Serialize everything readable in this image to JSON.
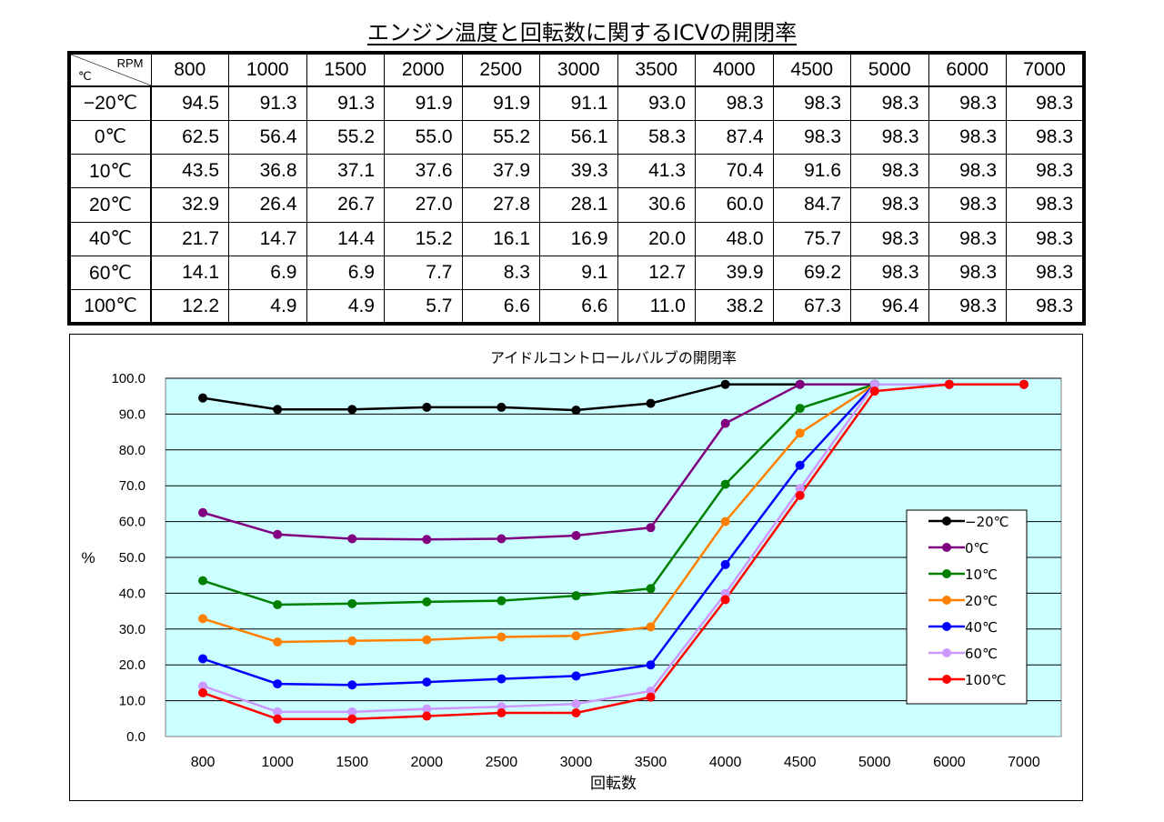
{
  "page_title": "エンジン温度と回転数に関するICVの開閉率",
  "table": {
    "corner_rpm": "RPM",
    "corner_deg": "℃",
    "columns": [
      "800",
      "1000",
      "1500",
      "2000",
      "2500",
      "3000",
      "3500",
      "4000",
      "4500",
      "5000",
      "6000",
      "7000"
    ],
    "rows": [
      {
        "label": "−20℃",
        "cells": [
          "94.5",
          "91.3",
          "91.3",
          "91.9",
          "91.9",
          "91.1",
          "93.0",
          "98.3",
          "98.3",
          "98.3",
          "98.3",
          "98.3"
        ]
      },
      {
        "label": "0℃",
        "cells": [
          "62.5",
          "56.4",
          "55.2",
          "55.0",
          "55.2",
          "56.1",
          "58.3",
          "87.4",
          "98.3",
          "98.3",
          "98.3",
          "98.3"
        ]
      },
      {
        "label": "10℃",
        "cells": [
          "43.5",
          "36.8",
          "37.1",
          "37.6",
          "37.9",
          "39.3",
          "41.3",
          "70.4",
          "91.6",
          "98.3",
          "98.3",
          "98.3"
        ]
      },
      {
        "label": "20℃",
        "cells": [
          "32.9",
          "26.4",
          "26.7",
          "27.0",
          "27.8",
          "28.1",
          "30.6",
          "60.0",
          "84.7",
          "98.3",
          "98.3",
          "98.3"
        ]
      },
      {
        "label": "40℃",
        "cells": [
          "21.7",
          "14.7",
          "14.4",
          "15.2",
          "16.1",
          "16.9",
          "20.0",
          "48.0",
          "75.7",
          "98.3",
          "98.3",
          "98.3"
        ]
      },
      {
        "label": "60℃",
        "cells": [
          "14.1",
          "6.9",
          "6.9",
          "7.7",
          "8.3",
          "9.1",
          "12.7",
          "39.9",
          "69.2",
          "98.3",
          "98.3",
          "98.3"
        ]
      },
      {
        "label": "100℃",
        "cells": [
          "12.2",
          "4.9",
          "4.9",
          "5.7",
          "6.6",
          "6.6",
          "11.0",
          "38.2",
          "67.3",
          "96.4",
          "98.3",
          "98.3"
        ]
      }
    ]
  },
  "chart_data": {
    "type": "line",
    "title": "アイドルコントロールバルブの開閉率",
    "xlabel": "回転数",
    "ylabel": "%",
    "categories": [
      "800",
      "1000",
      "1500",
      "2000",
      "2500",
      "3000",
      "3500",
      "4000",
      "4500",
      "5000",
      "6000",
      "7000"
    ],
    "ylim": [
      0,
      100
    ],
    "yticks": [
      "0.0",
      "10.0",
      "20.0",
      "30.0",
      "40.0",
      "50.0",
      "60.0",
      "70.0",
      "80.0",
      "90.0",
      "100.0"
    ],
    "grid": true,
    "plot_background": "#ccffff",
    "legend_position": "right",
    "series": [
      {
        "name": "−20℃",
        "color": "#000000",
        "values": [
          94.5,
          91.3,
          91.3,
          91.9,
          91.9,
          91.1,
          93.0,
          98.3,
          98.3,
          98.3,
          98.3,
          98.3
        ]
      },
      {
        "name": "0℃",
        "color": "#800080",
        "values": [
          62.5,
          56.4,
          55.2,
          55.0,
          55.2,
          56.1,
          58.3,
          87.4,
          98.3,
          98.3,
          98.3,
          98.3
        ]
      },
      {
        "name": "10℃",
        "color": "#008000",
        "values": [
          43.5,
          36.8,
          37.1,
          37.6,
          37.9,
          39.3,
          41.3,
          70.4,
          91.6,
          98.3,
          98.3,
          98.3
        ]
      },
      {
        "name": "20℃",
        "color": "#ff8000",
        "values": [
          32.9,
          26.4,
          26.7,
          27.0,
          27.8,
          28.1,
          30.6,
          60.0,
          84.7,
          98.3,
          98.3,
          98.3
        ]
      },
      {
        "name": "40℃",
        "color": "#0000ff",
        "values": [
          21.7,
          14.7,
          14.4,
          15.2,
          16.1,
          16.9,
          20.0,
          48.0,
          75.7,
          98.3,
          98.3,
          98.3
        ]
      },
      {
        "name": "60℃",
        "color": "#cc99ff",
        "values": [
          14.1,
          6.9,
          6.9,
          7.7,
          8.3,
          9.1,
          12.7,
          39.9,
          69.2,
          98.3,
          98.3,
          98.3
        ]
      },
      {
        "name": "100℃",
        "color": "#ff0000",
        "values": [
          12.2,
          4.9,
          4.9,
          5.7,
          6.6,
          6.6,
          11.0,
          38.2,
          67.3,
          96.4,
          98.3,
          98.3
        ]
      }
    ]
  }
}
